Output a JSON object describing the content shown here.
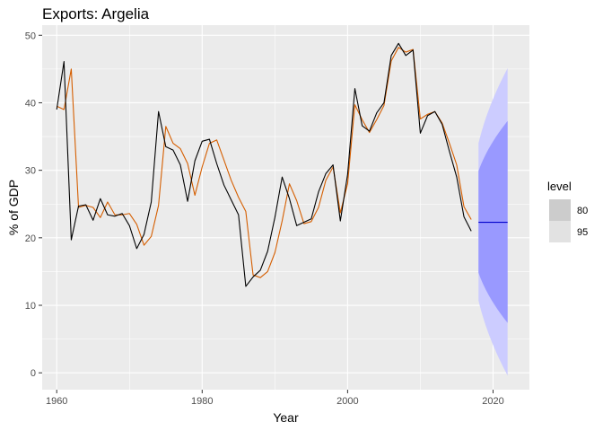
{
  "chart_data": {
    "type": "line",
    "title": "Exports: Argelia",
    "xlabel": "Year",
    "ylabel": "% of GDP",
    "xlim": [
      1958,
      2025
    ],
    "ylim": [
      -2.5,
      51.5
    ],
    "x_ticks": [
      1960,
      1980,
      2000,
      2020
    ],
    "y_ticks": [
      0,
      10,
      20,
      30,
      40,
      50
    ],
    "grid": true,
    "legend": {
      "title": "level",
      "placement": "right",
      "entries": [
        {
          "label": "80",
          "color": "#cccccc"
        },
        {
          "label": "95",
          "color": "#e2e2e2"
        }
      ]
    },
    "series": [
      {
        "color": "#000000",
        "x": [
          1960,
          1961,
          1962,
          1963,
          1964,
          1965,
          1966,
          1967,
          1968,
          1969,
          1970,
          1971,
          1972,
          1973,
          1974,
          1975,
          1976,
          1977,
          1978,
          1979,
          1980,
          1981,
          1982,
          1983,
          1984,
          1985,
          1986,
          1987,
          1988,
          1989,
          1990,
          1991,
          1992,
          1993,
          1994,
          1995,
          1996,
          1997,
          1998,
          1999,
          2000,
          2001,
          2002,
          2003,
          2004,
          2005,
          2006,
          2007,
          2008,
          2009,
          2010,
          2011,
          2012,
          2013,
          2014,
          2015,
          2016,
          2017
        ],
        "values": [
          39.0,
          46.1,
          19.7,
          24.7,
          24.9,
          22.6,
          25.8,
          23.4,
          23.2,
          23.6,
          21.8,
          18.4,
          20.5,
          25.3,
          38.7,
          33.5,
          33.0,
          30.8,
          25.4,
          31.4,
          34.3,
          34.6,
          31.0,
          27.8,
          25.6,
          23.4,
          12.8,
          14.2,
          15.2,
          18.0,
          23.0,
          29.0,
          25.8,
          21.8,
          22.3,
          22.8,
          26.8,
          29.5,
          30.8,
          22.5,
          29.4,
          42.1,
          36.6,
          35.8,
          38.5,
          40.0,
          47.0,
          48.8,
          47.0,
          47.8,
          35.5,
          38.1,
          38.7,
          36.8,
          32.8,
          29.0,
          23.1,
          21.0
        ]
      },
      {
        "color": "#d55e00",
        "x": [
          1960,
          1961,
          1962,
          1963,
          1964,
          1965,
          1966,
          1967,
          1968,
          1969,
          1970,
          1971,
          1972,
          1973,
          1974,
          1975,
          1976,
          1977,
          1978,
          1979,
          1980,
          1981,
          1982,
          1983,
          1984,
          1985,
          1986,
          1987,
          1988,
          1989,
          1990,
          1991,
          1992,
          1993,
          1994,
          1995,
          1996,
          1997,
          1998,
          1999,
          2000,
          2001,
          2002,
          2003,
          2004,
          2005,
          2006,
          2007,
          2008,
          2009,
          2010,
          2011,
          2012,
          2013,
          2014,
          2015,
          2016,
          2017
        ],
        "values": [
          39.5,
          39.0,
          45.0,
          24.5,
          24.8,
          24.5,
          23.0,
          25.3,
          23.4,
          23.4,
          23.6,
          22.0,
          18.9,
          20.2,
          24.8,
          36.5,
          34.0,
          33.2,
          31.0,
          26.3,
          30.5,
          34.0,
          34.5,
          31.5,
          28.5,
          26.0,
          23.9,
          14.5,
          14.1,
          15.0,
          17.8,
          22.5,
          28.0,
          25.5,
          22.1,
          22.4,
          24.5,
          28.5,
          30.5,
          23.7,
          28.0,
          39.7,
          37.5,
          35.6,
          37.5,
          39.6,
          46.2,
          48.2,
          47.5,
          47.9,
          37.6,
          38.3,
          38.7,
          37.0,
          34.0,
          30.8,
          24.6,
          22.7
        ]
      },
      {
        "color": "#0000cc",
        "x": [
          2018,
          2022
        ],
        "values": [
          22.3,
          22.3
        ]
      }
    ],
    "forecast": {
      "x": [
        2018,
        2022
      ],
      "lo95": [
        10.7,
        -0.3
      ],
      "hi95": [
        34.0,
        45.2
      ],
      "lo80": [
        14.8,
        7.4
      ],
      "hi80": [
        29.9,
        37.3
      ],
      "colors": {
        "band95": "#ccccff",
        "band80": "#9999ff"
      }
    }
  }
}
